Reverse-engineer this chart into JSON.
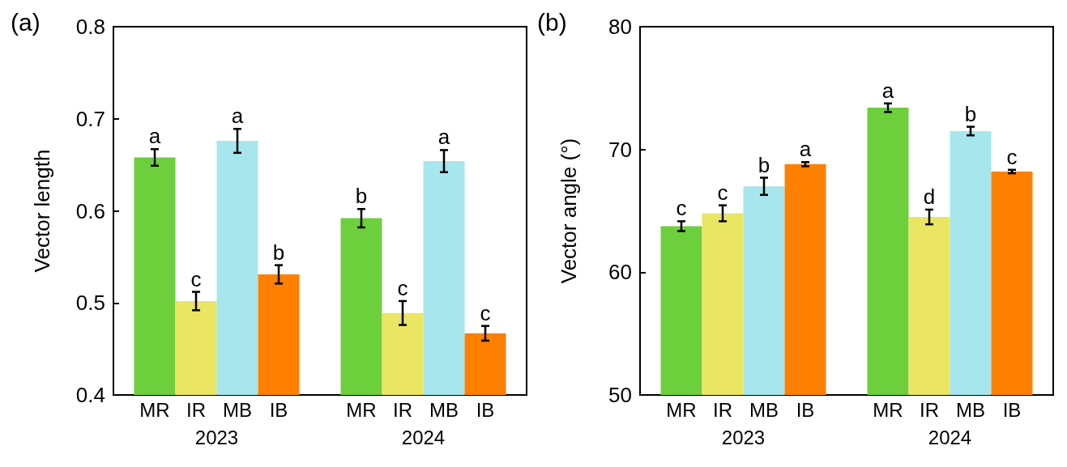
{
  "chart_data": [
    {
      "type": "bar",
      "ylabel": "Vector length",
      "annotations": [
        "(a)"
      ],
      "categories": [
        "2023",
        "2024"
      ],
      "ylim": [
        0.4,
        0.8
      ],
      "yticks": [
        0.4,
        0.5,
        0.6,
        0.7,
        0.8
      ],
      "grid": false,
      "legend": false,
      "series": [
        {
          "name": "MR",
          "color": "#6ecf3c",
          "values": [
            0.658,
            0.592
          ],
          "errors": [
            0.009,
            0.01
          ],
          "value_labels": [
            "a",
            "b"
          ]
        },
        {
          "name": "IR",
          "color": "#ebe564",
          "values": [
            0.502,
            0.489
          ],
          "errors": [
            0.01,
            0.013
          ],
          "value_labels": [
            "c",
            "c"
          ]
        },
        {
          "name": "MB",
          "color": "#a6e6ec",
          "values": [
            0.676,
            0.654
          ],
          "errors": [
            0.013,
            0.012
          ],
          "value_labels": [
            "a",
            "a"
          ]
        },
        {
          "name": "IB",
          "color": "#ff8000",
          "values": [
            0.531,
            0.467
          ],
          "errors": [
            0.01,
            0.008
          ],
          "value_labels": [
            "b",
            "c"
          ]
        }
      ]
    },
    {
      "type": "bar",
      "ylabel": "Vector angle (°)",
      "annotations": [
        "(b)"
      ],
      "categories": [
        "2023",
        "2024"
      ],
      "ylim": [
        50,
        80
      ],
      "yticks": [
        50,
        60,
        70,
        80
      ],
      "grid": false,
      "legend": false,
      "series": [
        {
          "name": "MR",
          "color": "#6ecf3c",
          "values": [
            63.75,
            73.4
          ],
          "errors": [
            0.4,
            0.35
          ],
          "value_labels": [
            "c",
            "a"
          ]
        },
        {
          "name": "IR",
          "color": "#ebe564",
          "values": [
            64.8,
            64.5
          ],
          "errors": [
            0.65,
            0.6
          ],
          "value_labels": [
            "c",
            "d"
          ]
        },
        {
          "name": "MB",
          "color": "#a6e6ec",
          "values": [
            67.0,
            71.5
          ],
          "errors": [
            0.7,
            0.35
          ],
          "value_labels": [
            "b",
            "b"
          ]
        },
        {
          "name": "IB",
          "color": "#ff8000",
          "values": [
            68.8,
            68.2
          ],
          "errors": [
            0.17,
            0.14
          ],
          "value_labels": [
            "a",
            "c"
          ]
        }
      ]
    }
  ]
}
